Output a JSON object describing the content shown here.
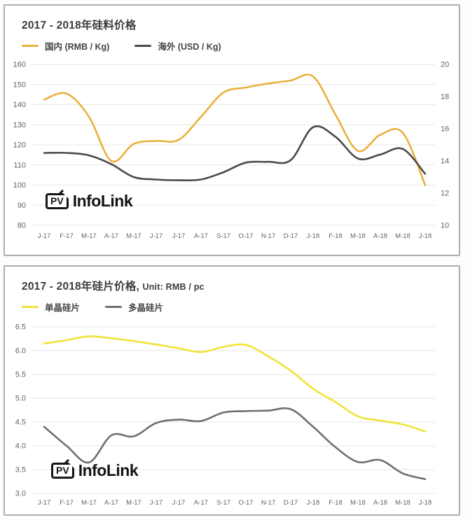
{
  "logo": {
    "badge": "PV",
    "name": "InfoLink"
  },
  "chart_data": [
    {
      "type": "line",
      "title": "2017 - 2018年硅料价格",
      "categories": [
        "J-17",
        "F-17",
        "M-17",
        "A-17",
        "M-17",
        "J-17",
        "J-17",
        "A-17",
        "S-17",
        "O-17",
        "N-17",
        "D-17",
        "J-18",
        "F-18",
        "M-18",
        "A-18",
        "M-18",
        "J-18"
      ],
      "left_axis": {
        "label": "RMB / Kg",
        "min": 80,
        "max": 160,
        "step": 10,
        "ticks": [
          160,
          150,
          140,
          130,
          120,
          110,
          100,
          90,
          80
        ]
      },
      "right_axis": {
        "label": "USD / Kg",
        "min": 10,
        "max": 20,
        "step": 2,
        "ticks": [
          20,
          18,
          16,
          14,
          12,
          10
        ]
      },
      "grid": "horizontal",
      "legend_position": "top-left",
      "series": [
        {
          "name": "国内 (RMB / Kg)",
          "axis": "left",
          "color": "#E8B13C",
          "values": [
            142.5,
            145.5,
            134,
            112,
            120.5,
            122,
            122.5,
            134,
            146,
            148.5,
            150.5,
            152,
            154,
            135,
            117,
            125,
            126,
            100
          ]
        },
        {
          "name": "海外 (USD / Kg)",
          "axis": "right",
          "color": "#4A4A4A",
          "values": [
            14.5,
            14.5,
            14.35,
            13.8,
            13.0,
            12.85,
            12.8,
            12.85,
            13.3,
            13.9,
            13.95,
            14.05,
            16.1,
            15.5,
            14.15,
            14.4,
            14.75,
            13.2
          ]
        }
      ]
    },
    {
      "type": "line",
      "title": "2017 - 2018年硅片价格,",
      "unit": "Unit: RMB / pc",
      "categories": [
        "J-17",
        "F-17",
        "M-17",
        "A-17",
        "M-17",
        "J-17",
        "J-17",
        "A-17",
        "S-17",
        "O-17",
        "N-17",
        "D-17",
        "J-18",
        "F-18",
        "M-18",
        "A-18",
        "M-18",
        "J-18"
      ],
      "left_axis": {
        "label": "RMB / pc",
        "min": 3.0,
        "max": 6.5,
        "step": 0.5,
        "ticks": [
          6.5,
          6.0,
          5.5,
          5.0,
          4.5,
          4.0,
          3.5,
          3.0
        ],
        "decimals": 1
      },
      "grid": "horizontal",
      "legend_position": "top-left",
      "series": [
        {
          "name": "单晶硅片",
          "axis": "left",
          "color": "#F0E339",
          "values": [
            6.15,
            6.22,
            6.3,
            6.26,
            6.2,
            6.13,
            6.05,
            5.97,
            6.08,
            6.12,
            5.88,
            5.58,
            5.2,
            4.92,
            4.62,
            4.53,
            4.45,
            4.3
          ]
        },
        {
          "name": "多晶硅片",
          "axis": "left",
          "color": "#6F6F6F",
          "values": [
            4.4,
            4.0,
            3.65,
            4.22,
            4.2,
            4.48,
            4.55,
            4.52,
            4.7,
            4.73,
            4.74,
            4.77,
            4.4,
            3.97,
            3.66,
            3.7,
            3.42,
            3.3
          ]
        }
      ]
    }
  ]
}
